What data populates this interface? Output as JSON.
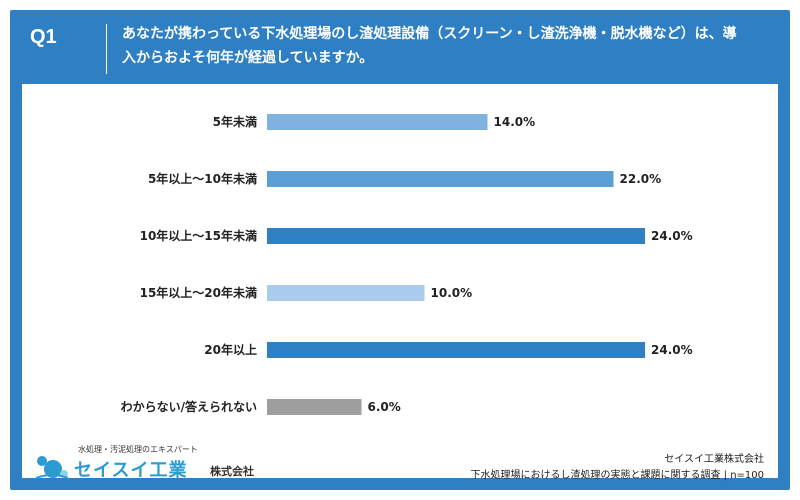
{
  "question": {
    "number": "Q1",
    "text": "あなたが携わっている下水処理場のし渣処理設備（スクリーン・し渣洗浄機・脱水機など）は、導入からおよそ何年が経過していますか。"
  },
  "chart_data": {
    "type": "bar",
    "orientation": "horizontal",
    "categories": [
      "5年未満",
      "5年以上〜10年未満",
      "10年以上〜15年未満",
      "15年以上〜20年未満",
      "20年以上",
      "わからない/答えられない"
    ],
    "values": [
      14.0,
      22.0,
      24.0,
      10.0,
      24.0,
      6.0
    ],
    "value_labels": [
      "14.0%",
      "22.0%",
      "24.0%",
      "10.0%",
      "24.0%",
      "6.0%"
    ],
    "colors": [
      "#7fb2de",
      "#5a9fd6",
      "#2f7fc4",
      "#a9ccec",
      "#2f7fc4",
      "#9e9e9e"
    ],
    "xlim": [
      0,
      24
    ],
    "grid": false,
    "legend": false
  },
  "logo": {
    "tagline": "水処理・汚泥処理のエキスパート",
    "name": "セイスイ工業",
    "suffix": "株式会社"
  },
  "source": {
    "company": "セイスイ工業株式会社",
    "survey": "下水処理場におけるし渣処理の実態と課題に関する調査 | n=100"
  }
}
